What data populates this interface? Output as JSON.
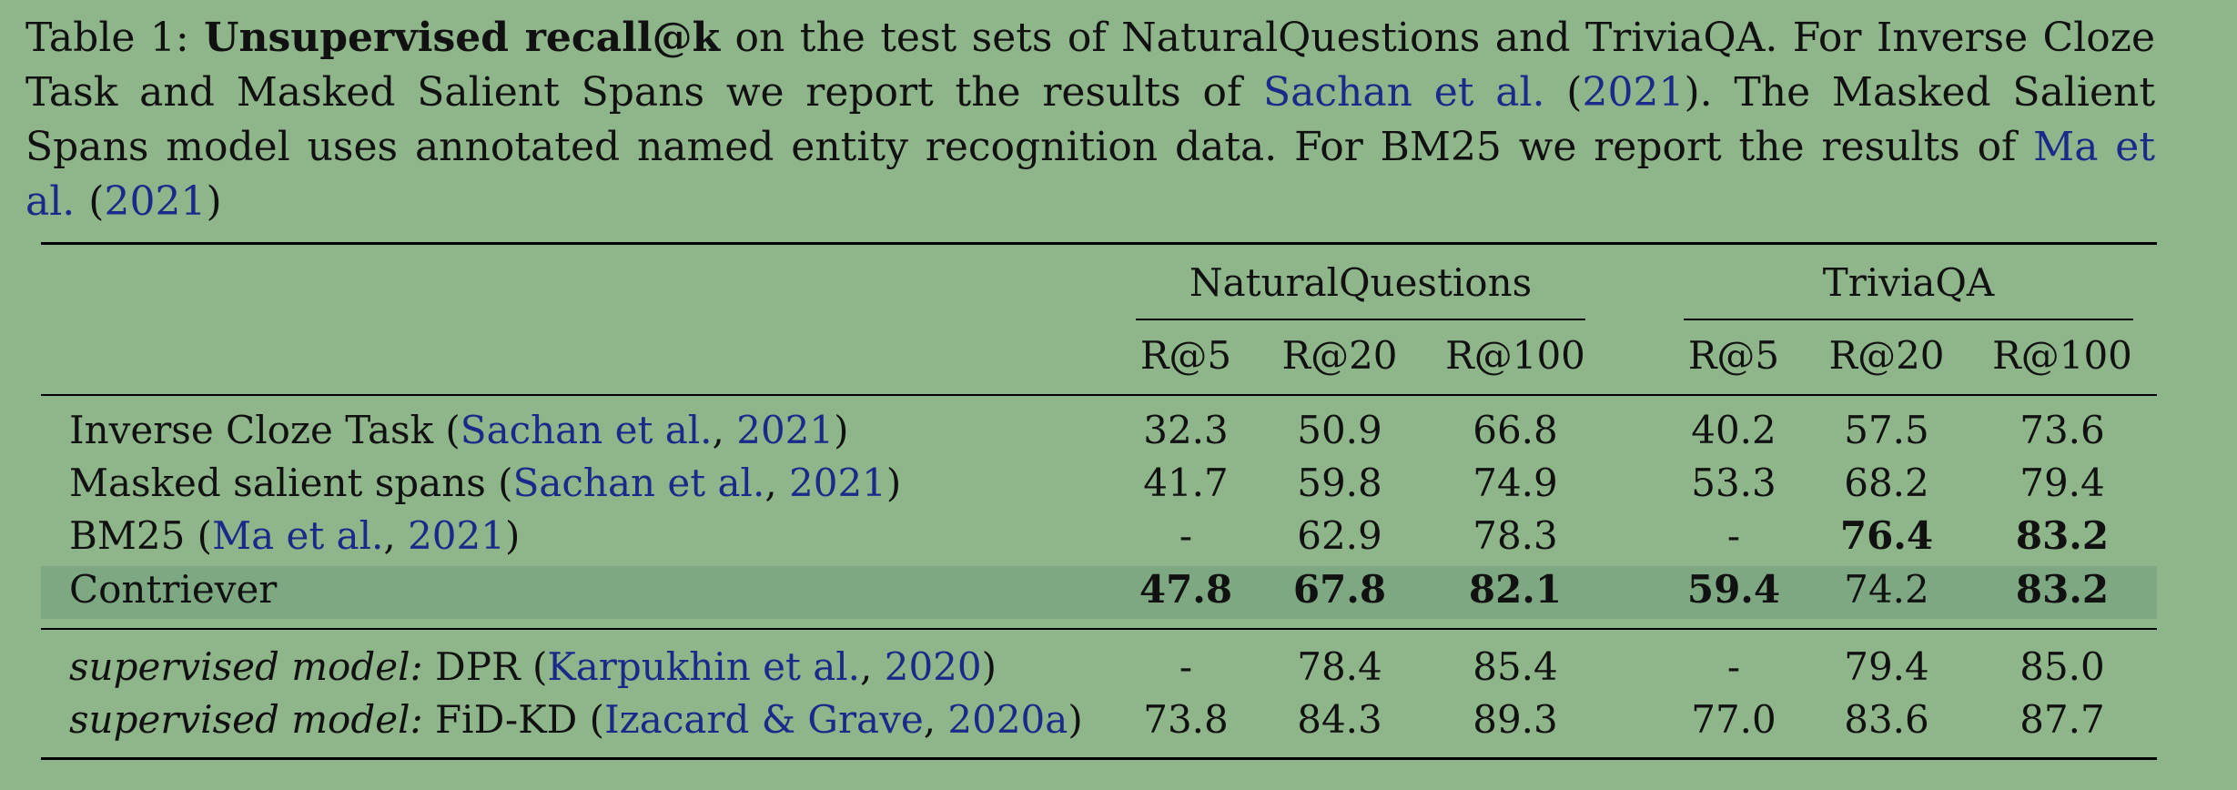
{
  "caption": {
    "prefix": "Table 1: ",
    "bold": "Unsupervised recall@k",
    "text1": " on the test sets of NaturalQuestions and TriviaQA. For Inverse Cloze Task and Masked Salient Spans we report the results of ",
    "cite1_author": "Sachan et al.",
    "cite1_year": "2021",
    "text2": ". The Masked Salient Spans model uses annotated named entity recognition data. For BM25 we report the results of ",
    "cite2_author": "Ma et al.",
    "cite2_year": "2021"
  },
  "table": {
    "groups": [
      "NaturalQuestions",
      "TriviaQA"
    ],
    "columns": [
      "R@5",
      "R@20",
      "R@100",
      "R@5",
      "R@20",
      "R@100"
    ],
    "rows": [
      {
        "name": "Inverse Cloze Task",
        "cite_author": "Sachan et al.",
        "cite_year": "2021",
        "values": [
          "32.3",
          "50.9",
          "66.8",
          "40.2",
          "57.5",
          "73.6"
        ],
        "bold": [
          false,
          false,
          false,
          false,
          false,
          false
        ]
      },
      {
        "name": "Masked salient spans",
        "cite_author": "Sachan et al.",
        "cite_year": "2021",
        "values": [
          "41.7",
          "59.8",
          "74.9",
          "53.3",
          "68.2",
          "79.4"
        ],
        "bold": [
          false,
          false,
          false,
          false,
          false,
          false
        ]
      },
      {
        "name": "BM25",
        "cite_author": "Ma et al.",
        "cite_year": "2021",
        "values": [
          "-",
          "62.9",
          "78.3",
          "-",
          "76.4",
          "83.2"
        ],
        "bold": [
          false,
          false,
          false,
          false,
          true,
          true
        ]
      },
      {
        "name": "Contriever",
        "cite_author": "",
        "cite_year": "",
        "values": [
          "47.8",
          "67.8",
          "82.1",
          "59.4",
          "74.2",
          "83.2"
        ],
        "bold": [
          true,
          true,
          true,
          true,
          false,
          true
        ]
      }
    ],
    "supervised_prefix": "supervised model:",
    "supervised_rows": [
      {
        "name": "DPR",
        "cite_author": "Karpukhin et al.",
        "cite_year": "2020",
        "values": [
          "-",
          "78.4",
          "85.4",
          "-",
          "79.4",
          "85.0"
        ]
      },
      {
        "name": "FiD-KD",
        "cite_author": "Izacard & Grave",
        "cite_year": "2020a",
        "values": [
          "73.8",
          "84.3",
          "89.3",
          "77.0",
          "83.6",
          "87.7"
        ]
      }
    ]
  }
}
